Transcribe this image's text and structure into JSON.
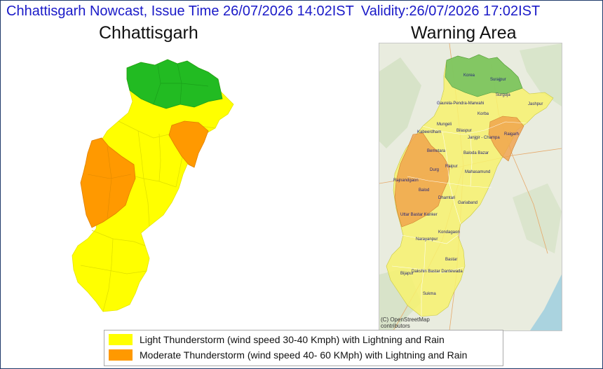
{
  "header": {
    "nowcast": "Chhattisgarh Nowcast, Issue Time 26/07/2026 14:02IST",
    "validity": "Validity:26/07/2026 17:02IST"
  },
  "left_panel": {
    "title": "Chhattisgarh"
  },
  "right_panel": {
    "title": "Warning Area",
    "attribution": "(C) OpenStreetMap contributors",
    "places": [
      "Korea",
      "Surajpur",
      "Surguja",
      "Gaurela-Pendra-Marwahi",
      "Jashpur",
      "Korba",
      "Mungeli",
      "Kabeerdham",
      "Bilaspur",
      "Janjgir - Champa",
      "Raigarh",
      "Bemetara",
      "Baloda Bazar",
      "Durg",
      "Raipur",
      "Mahasamund",
      "Rajnandgaon",
      "Balod",
      "Dhamtari",
      "Gariaband",
      "Uttar Bastar Kanker",
      "Kondagaon",
      "Narayanpur",
      "Bastar",
      "Bijapur",
      "Dakshin Bastar Dantewada",
      "Sukma"
    ]
  },
  "legend": {
    "items": [
      {
        "label": "Light Thunderstorm (wind speed 30-40 Kmph) with Lightning and Rain",
        "color": "#ffff00"
      },
      {
        "label": "Moderate Thunderstorm (wind speed 40- 60 KMph) with Lightning and Rain",
        "color": "#ff9900"
      }
    ]
  },
  "colors": {
    "no_warning": "#22bb22",
    "light": "#ffff00",
    "moderate": "#ff9900",
    "header_text": "#1a1ac8"
  }
}
